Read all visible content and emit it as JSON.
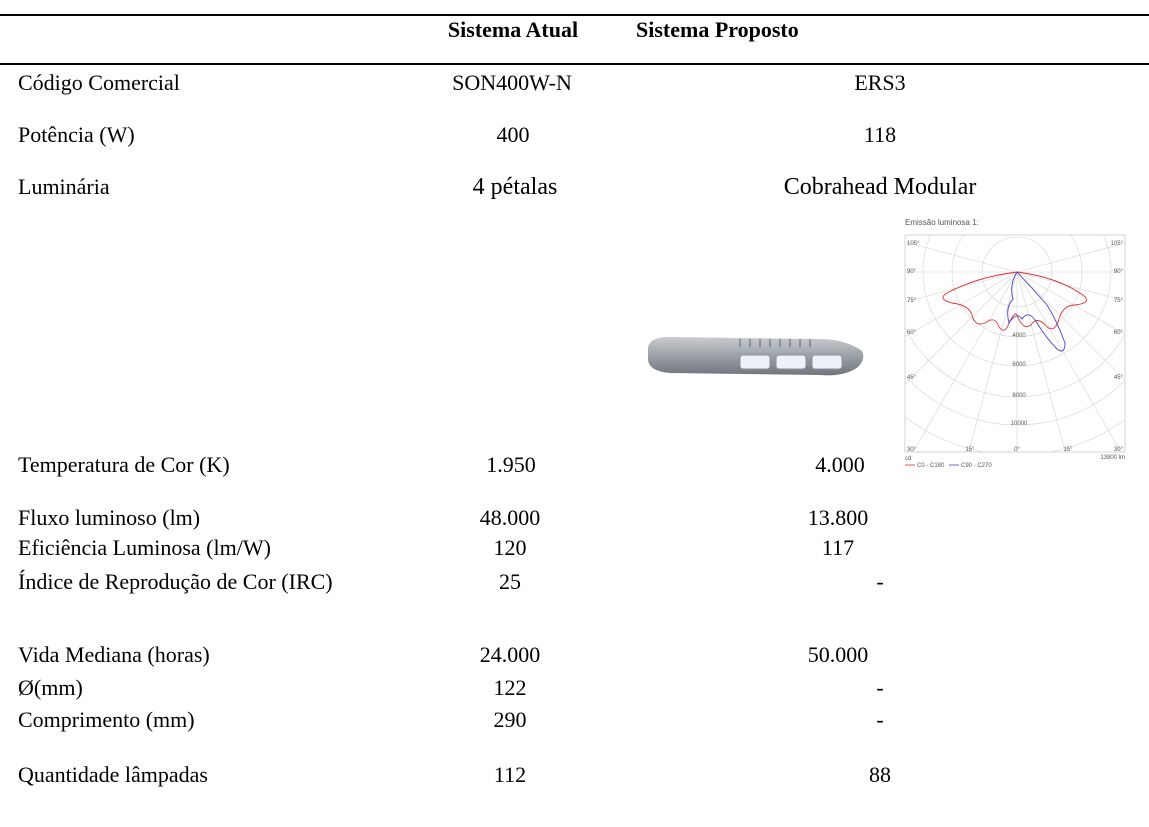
{
  "header": {
    "col1": "Sistema Atual",
    "col2": "Sistema Proposto"
  },
  "table": {
    "rows": [
      [
        "Código Comercial",
        "SON400W-N",
        "ERS3"
      ],
      [
        "Potência (W)",
        "400",
        "118"
      ],
      [
        "Luminária",
        "4 pétalas",
        "Cobrahead Modular"
      ],
      [
        "Temperatura de Cor (K)",
        "1.950",
        "4.000"
      ],
      [
        "Fluxo luminoso (lm)",
        "48.000",
        "13.800"
      ],
      [
        "Eficiência Luminosa (lm/W)",
        "120",
        "117"
      ],
      [
        "Índice de Reprodução de Cor (IRC)",
        "25",
        "-"
      ],
      [
        "Vida Mediana (horas)",
        "24.000",
        "50.000"
      ],
      [
        "Ø(mm)",
        "122",
        "-"
      ],
      [
        "Comprimento (mm)",
        "290",
        "-"
      ],
      [
        "Quantidade lâmpadas",
        "112",
        "88"
      ]
    ]
  },
  "figure": {
    "title": "Emissão luminosa 1:",
    "angle_labels": [
      "105°",
      "90°",
      "75°",
      "60°",
      "45°",
      "30°"
    ],
    "bottom_labels": [
      "15°",
      "0°",
      "15°"
    ],
    "radial_labels": [
      "4000",
      "6000",
      "8000",
      "10000"
    ],
    "unit": "cd",
    "legend": [
      "C0 - C180",
      "C90 - C270"
    ],
    "flux": "13800 lm"
  }
}
